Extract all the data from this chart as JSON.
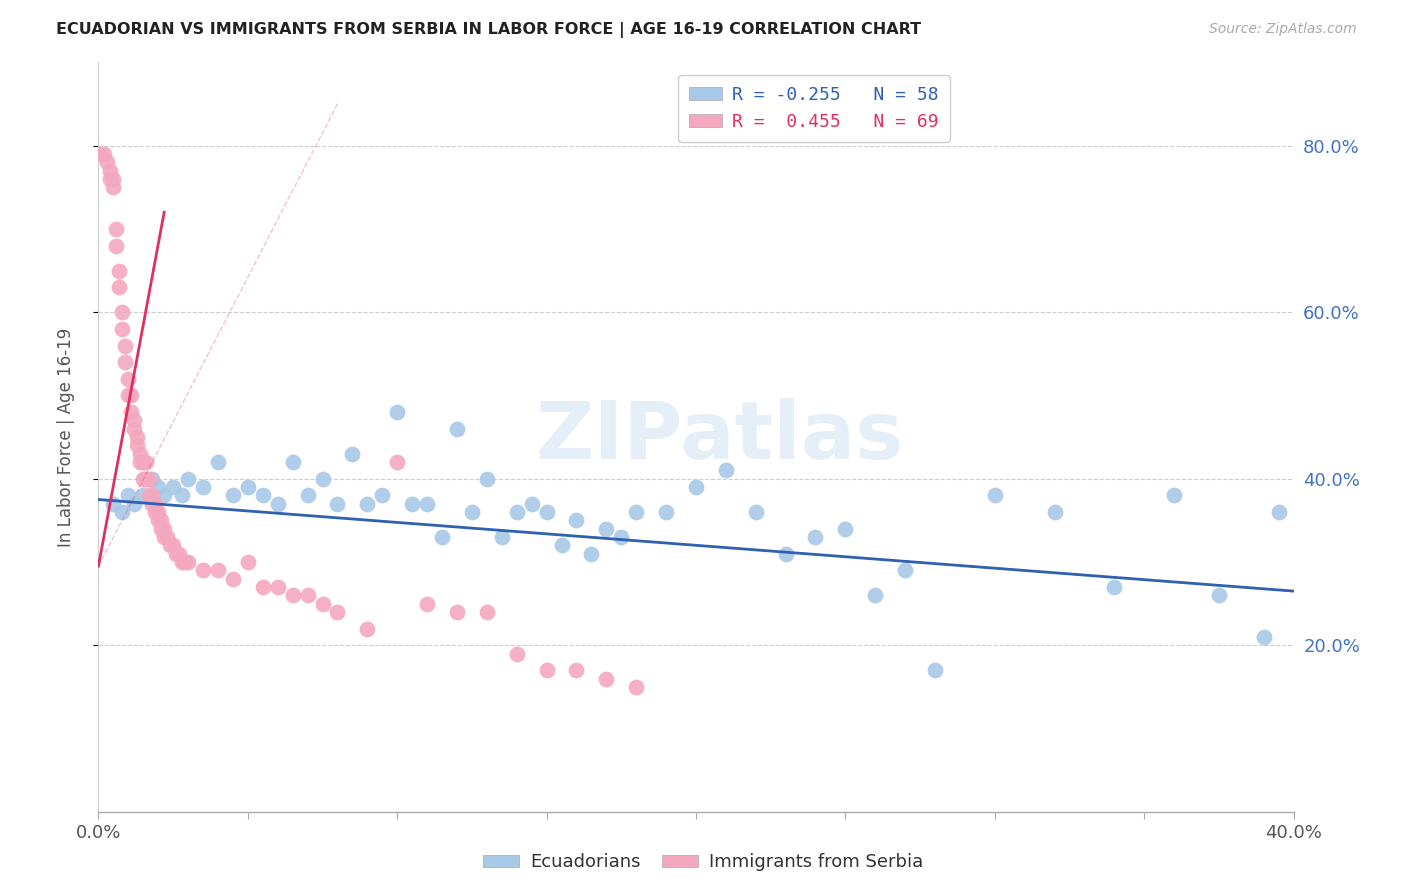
{
  "title": "ECUADORIAN VS IMMIGRANTS FROM SERBIA IN LABOR FORCE | AGE 16-19 CORRELATION CHART",
  "source": "Source: ZipAtlas.com",
  "ylabel": "In Labor Force | Age 16-19",
  "xlim": [
    0.0,
    0.4
  ],
  "ylim": [
    0.0,
    0.9
  ],
  "yticks": [
    0.2,
    0.4,
    0.6,
    0.8
  ],
  "xticks": [
    0.0,
    0.05,
    0.1,
    0.15,
    0.2,
    0.25,
    0.3,
    0.35,
    0.4
  ],
  "watermark": "ZIPatlas",
  "legend_blue": "R = -0.255   N = 58",
  "legend_pink": "R =  0.455   N = 69",
  "blue_color": "#a8c8e8",
  "pink_color": "#f4a8c0",
  "blue_line_color": "#3060b0",
  "pink_line_color": "#e03060",
  "blue_scatter_x": [
    0.005,
    0.008,
    0.01,
    0.012,
    0.015,
    0.018,
    0.02,
    0.022,
    0.025,
    0.028,
    0.03,
    0.035,
    0.04,
    0.045,
    0.05,
    0.055,
    0.06,
    0.065,
    0.07,
    0.075,
    0.08,
    0.085,
    0.09,
    0.095,
    0.1,
    0.105,
    0.11,
    0.115,
    0.12,
    0.125,
    0.13,
    0.135,
    0.14,
    0.145,
    0.15,
    0.155,
    0.16,
    0.165,
    0.17,
    0.175,
    0.18,
    0.19,
    0.2,
    0.21,
    0.22,
    0.23,
    0.24,
    0.25,
    0.26,
    0.27,
    0.28,
    0.3,
    0.32,
    0.34,
    0.36,
    0.375,
    0.39,
    0.395
  ],
  "blue_scatter_y": [
    0.37,
    0.36,
    0.38,
    0.37,
    0.38,
    0.4,
    0.39,
    0.38,
    0.39,
    0.38,
    0.4,
    0.39,
    0.42,
    0.38,
    0.39,
    0.38,
    0.37,
    0.42,
    0.38,
    0.4,
    0.37,
    0.43,
    0.37,
    0.38,
    0.48,
    0.37,
    0.37,
    0.33,
    0.46,
    0.36,
    0.4,
    0.33,
    0.36,
    0.37,
    0.36,
    0.32,
    0.35,
    0.31,
    0.34,
    0.33,
    0.36,
    0.36,
    0.39,
    0.41,
    0.36,
    0.31,
    0.33,
    0.34,
    0.26,
    0.29,
    0.17,
    0.38,
    0.36,
    0.27,
    0.38,
    0.26,
    0.21,
    0.36
  ],
  "pink_scatter_x": [
    0.001,
    0.002,
    0.003,
    0.004,
    0.004,
    0.005,
    0.005,
    0.006,
    0.006,
    0.007,
    0.007,
    0.008,
    0.008,
    0.009,
    0.009,
    0.01,
    0.01,
    0.011,
    0.011,
    0.012,
    0.012,
    0.013,
    0.013,
    0.014,
    0.014,
    0.015,
    0.015,
    0.016,
    0.016,
    0.017,
    0.017,
    0.018,
    0.018,
    0.019,
    0.019,
    0.02,
    0.02,
    0.021,
    0.021,
    0.022,
    0.022,
    0.023,
    0.024,
    0.025,
    0.026,
    0.027,
    0.028,
    0.029,
    0.03,
    0.035,
    0.04,
    0.045,
    0.05,
    0.055,
    0.06,
    0.065,
    0.07,
    0.075,
    0.08,
    0.09,
    0.1,
    0.11,
    0.12,
    0.13,
    0.14,
    0.15,
    0.16,
    0.17,
    0.18
  ],
  "pink_scatter_y": [
    0.79,
    0.79,
    0.78,
    0.77,
    0.76,
    0.76,
    0.75,
    0.7,
    0.68,
    0.65,
    0.63,
    0.6,
    0.58,
    0.56,
    0.54,
    0.52,
    0.5,
    0.5,
    0.48,
    0.47,
    0.46,
    0.45,
    0.44,
    0.43,
    0.42,
    0.42,
    0.4,
    0.42,
    0.4,
    0.4,
    0.38,
    0.38,
    0.37,
    0.37,
    0.36,
    0.36,
    0.35,
    0.35,
    0.34,
    0.34,
    0.33,
    0.33,
    0.32,
    0.32,
    0.31,
    0.31,
    0.3,
    0.3,
    0.3,
    0.29,
    0.29,
    0.28,
    0.3,
    0.27,
    0.27,
    0.26,
    0.26,
    0.25,
    0.24,
    0.22,
    0.42,
    0.25,
    0.24,
    0.24,
    0.19,
    0.17,
    0.17,
    0.16,
    0.15
  ],
  "blue_trend_x": [
    0.0,
    0.4
  ],
  "blue_trend_y": [
    0.375,
    0.265
  ],
  "pink_trend_x": [
    0.0,
    0.022
  ],
  "pink_trend_y": [
    0.295,
    0.72
  ]
}
